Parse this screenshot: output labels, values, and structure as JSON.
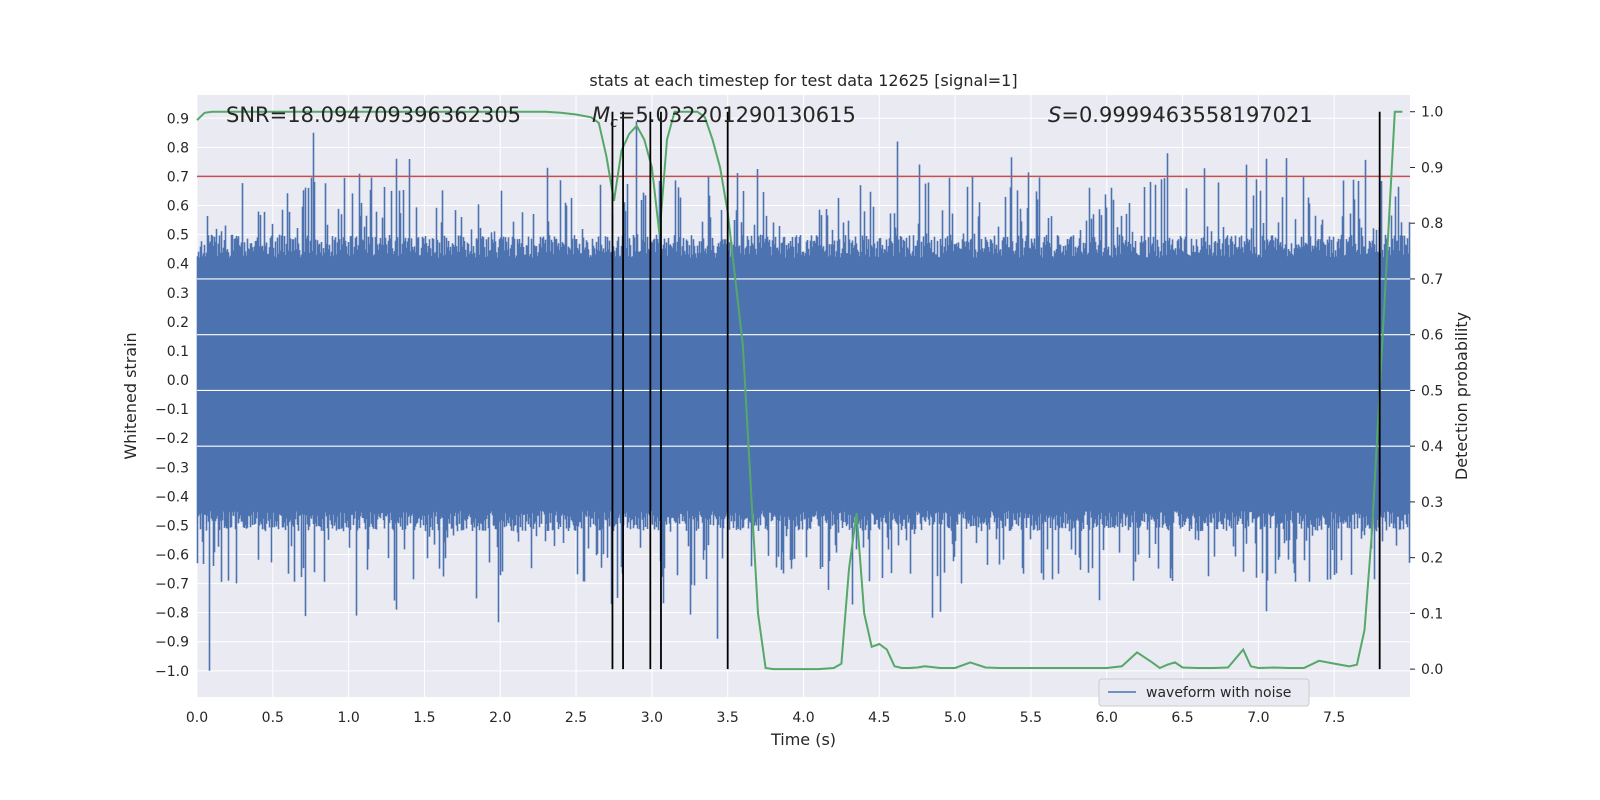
{
  "chart_data": {
    "type": "line",
    "title": "stats at each timestep for test data 12625 [signal=1]",
    "xlabel": "Time (s)",
    "ylabel_left": "Whitened strain",
    "ylabel_right": "Detection probability",
    "xlim": [
      0.0,
      8.0
    ],
    "ylim_left": [
      -1.09,
      0.98
    ],
    "ylim_right": [
      -0.05,
      1.03
    ],
    "x_ticks": [
      "0.0",
      "0.5",
      "1.0",
      "1.5",
      "2.0",
      "2.5",
      "3.0",
      "3.5",
      "4.0",
      "4.5",
      "5.0",
      "5.5",
      "6.0",
      "6.5",
      "7.0",
      "7.5"
    ],
    "y_ticks_left": [
      "0.9",
      "0.8",
      "0.7",
      "0.6",
      "0.5",
      "0.4",
      "0.3",
      "0.2",
      "0.1",
      "0.0",
      "−0.1",
      "−0.2",
      "−0.3",
      "−0.4",
      "−0.5",
      "−0.6",
      "−0.7",
      "−0.8",
      "−0.9",
      "−1.0"
    ],
    "y_ticks_right": [
      "1.0",
      "0.9",
      "0.8",
      "0.7",
      "0.6",
      "0.5",
      "0.4",
      "0.3",
      "0.2",
      "0.1",
      "0.0"
    ],
    "grid": true,
    "legend_position": "bottom-right",
    "threshold": {
      "value": 0.7,
      "axis": "left",
      "color": "#c44e52"
    },
    "annotations": {
      "snr": "SNR=18.094709396362305",
      "mc_symbol": "M",
      "mc_sub": "c",
      "mc_value": "=5.032201290130615",
      "s_symbol": "S",
      "s_value": "=0.9999463558197021"
    },
    "vertical_lines": [
      2.74,
      2.81,
      2.99,
      3.06,
      3.5,
      7.8
    ],
    "series": [
      {
        "name": "waveform with noise",
        "axis": "left",
        "color": "#4c72b0",
        "kind": "noise",
        "envelope": {
          "core_low": -0.45,
          "core_high": 0.42,
          "peak_min": -1.0,
          "peak_max": 0.9
        },
        "notable_peaks": [
          {
            "x": 0.08,
            "y": -1.0
          },
          {
            "x": 0.77,
            "y": 0.85
          },
          {
            "x": 1.05,
            "y": -0.81
          },
          {
            "x": 1.4,
            "y": 0.76
          },
          {
            "x": 2.9,
            "y": 0.89
          },
          {
            "x": 3.43,
            "y": -0.89
          },
          {
            "x": 4.62,
            "y": 0.82
          },
          {
            "x": 6.4,
            "y": 0.78
          }
        ]
      },
      {
        "name": "",
        "axis": "right",
        "color": "#55a868",
        "kind": "line",
        "x": [
          0.0,
          0.05,
          0.1,
          0.5,
          1.0,
          1.5,
          2.0,
          2.3,
          2.4,
          2.5,
          2.6,
          2.65,
          2.7,
          2.75,
          2.8,
          2.85,
          2.9,
          2.95,
          3.0,
          3.05,
          3.1,
          3.15,
          3.2,
          3.25,
          3.3,
          3.35,
          3.4,
          3.45,
          3.5,
          3.55,
          3.6,
          3.65,
          3.7,
          3.75,
          3.8,
          3.9,
          4.0,
          4.1,
          4.2,
          4.25,
          4.3,
          4.35,
          4.4,
          4.45,
          4.5,
          4.55,
          4.6,
          4.65,
          4.7,
          4.75,
          4.8,
          4.9,
          5.0,
          5.1,
          5.2,
          5.3,
          5.4,
          5.5,
          5.6,
          5.7,
          5.8,
          5.9,
          6.0,
          6.1,
          6.2,
          6.3,
          6.35,
          6.4,
          6.45,
          6.5,
          6.6,
          6.7,
          6.8,
          6.9,
          6.95,
          7.0,
          7.1,
          7.2,
          7.3,
          7.4,
          7.5,
          7.6,
          7.65,
          7.7,
          7.75,
          7.8,
          7.85,
          7.9,
          7.95
        ],
        "y": [
          0.985,
          0.998,
          1.0,
          1.0,
          1.0,
          1.0,
          1.0,
          1.0,
          0.998,
          0.995,
          0.99,
          0.98,
          0.92,
          0.84,
          0.93,
          0.96,
          0.975,
          0.95,
          0.9,
          0.78,
          0.95,
          1.0,
          1.0,
          1.0,
          1.0,
          0.99,
          0.95,
          0.9,
          0.82,
          0.7,
          0.58,
          0.34,
          0.1,
          0.002,
          0.0,
          0.0,
          0.0,
          0.0,
          0.002,
          0.01,
          0.18,
          0.28,
          0.1,
          0.04,
          0.045,
          0.035,
          0.005,
          0.002,
          0.002,
          0.003,
          0.005,
          0.002,
          0.002,
          0.012,
          0.003,
          0.002,
          0.002,
          0.002,
          0.002,
          0.002,
          0.002,
          0.002,
          0.002,
          0.005,
          0.03,
          0.012,
          0.002,
          0.008,
          0.012,
          0.003,
          0.002,
          0.002,
          0.003,
          0.035,
          0.005,
          0.002,
          0.003,
          0.002,
          0.002,
          0.015,
          0.01,
          0.005,
          0.008,
          0.07,
          0.25,
          0.5,
          0.75,
          1.0,
          1.0
        ]
      }
    ]
  }
}
